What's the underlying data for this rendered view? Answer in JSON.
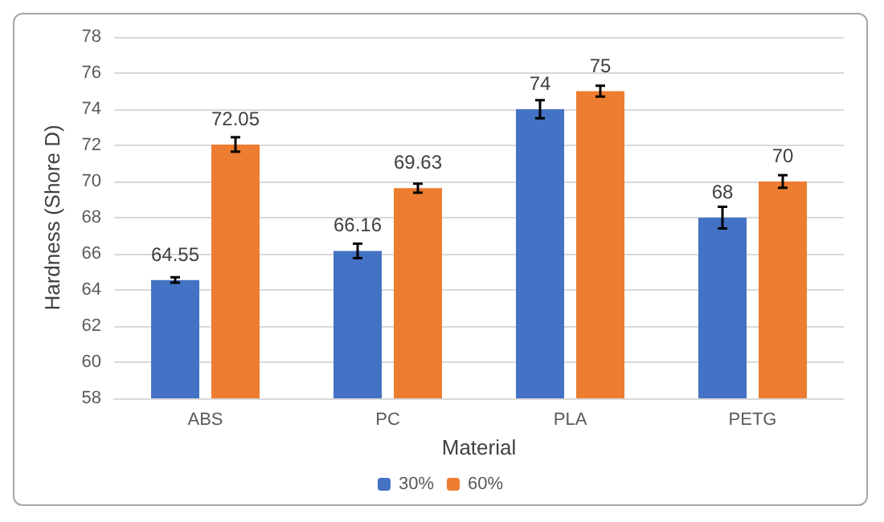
{
  "chart_data": {
    "type": "bar",
    "xlabel": "Material",
    "ylabel": "Hardness (Shore D)",
    "categories": [
      "ABS",
      "PC",
      "PLA",
      "PETG"
    ],
    "series": [
      {
        "name": "30%",
        "color": "#4472c4",
        "values": [
          64.55,
          66.16,
          74,
          68
        ],
        "errors": [
          0.15,
          0.4,
          0.5,
          0.6
        ]
      },
      {
        "name": "60%",
        "color": "#ed7d31",
        "values": [
          72.05,
          69.63,
          75,
          70
        ],
        "errors": [
          0.4,
          0.25,
          0.3,
          0.35
        ]
      }
    ],
    "ylim": [
      58,
      78
    ],
    "yticks": [
      58,
      60,
      62,
      64,
      66,
      68,
      70,
      72,
      74,
      76,
      78
    ],
    "grid": "y",
    "legend": "bottom",
    "data_labels": true
  }
}
